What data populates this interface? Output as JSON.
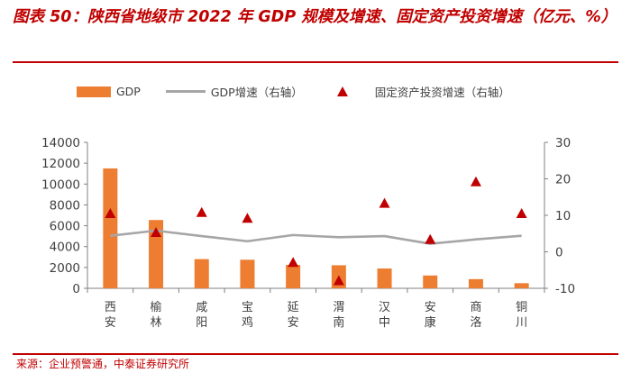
{
  "title": "图表 50：陕西省地级市 2022 年 GDP 规模及增速、固定资产投资增速（亿元、%）",
  "source": "来源：企业预警通，中泰证券研究所",
  "legend": {
    "gdp": "GDP",
    "gdp_growth": "GDP增速（右轴）",
    "fai_growth": "固定资产投资增速（右轴）"
  },
  "colors": {
    "bar": "#ED7D31",
    "line": "#A6A6A6",
    "marker": "#C00000",
    "accent": "#C00000"
  },
  "chart_data": {
    "type": "bar",
    "categories": [
      "西安",
      "榆林",
      "咸阳",
      "宝鸡",
      "延安",
      "渭南",
      "汉中",
      "安康",
      "商洛",
      "铜川"
    ],
    "series": [
      {
        "name": "GDP",
        "type": "bar",
        "axis": "left",
        "values": [
          11500,
          6550,
          2800,
          2740,
          2240,
          2210,
          1900,
          1230,
          880,
          490
        ]
      },
      {
        "name": "GDP增速（右轴）",
        "type": "line",
        "axis": "right",
        "values": [
          4.4,
          5.8,
          4.3,
          2.9,
          4.6,
          4.0,
          4.3,
          2.2,
          3.4,
          4.4
        ]
      },
      {
        "name": "固定资产投资增速（右轴）",
        "type": "scatter",
        "axis": "right",
        "values": [
          10.5,
          5.3,
          10.8,
          9.2,
          -2.9,
          -7.9,
          13.3,
          3.4,
          19.2,
          10.5
        ]
      }
    ],
    "y_left": {
      "min": 0,
      "max": 14000,
      "ticks": [
        0,
        2000,
        4000,
        6000,
        8000,
        10000,
        12000,
        14000
      ]
    },
    "y_right": {
      "min": -10,
      "max": 30,
      "ticks": [
        -10,
        0,
        10,
        20,
        30
      ]
    }
  }
}
